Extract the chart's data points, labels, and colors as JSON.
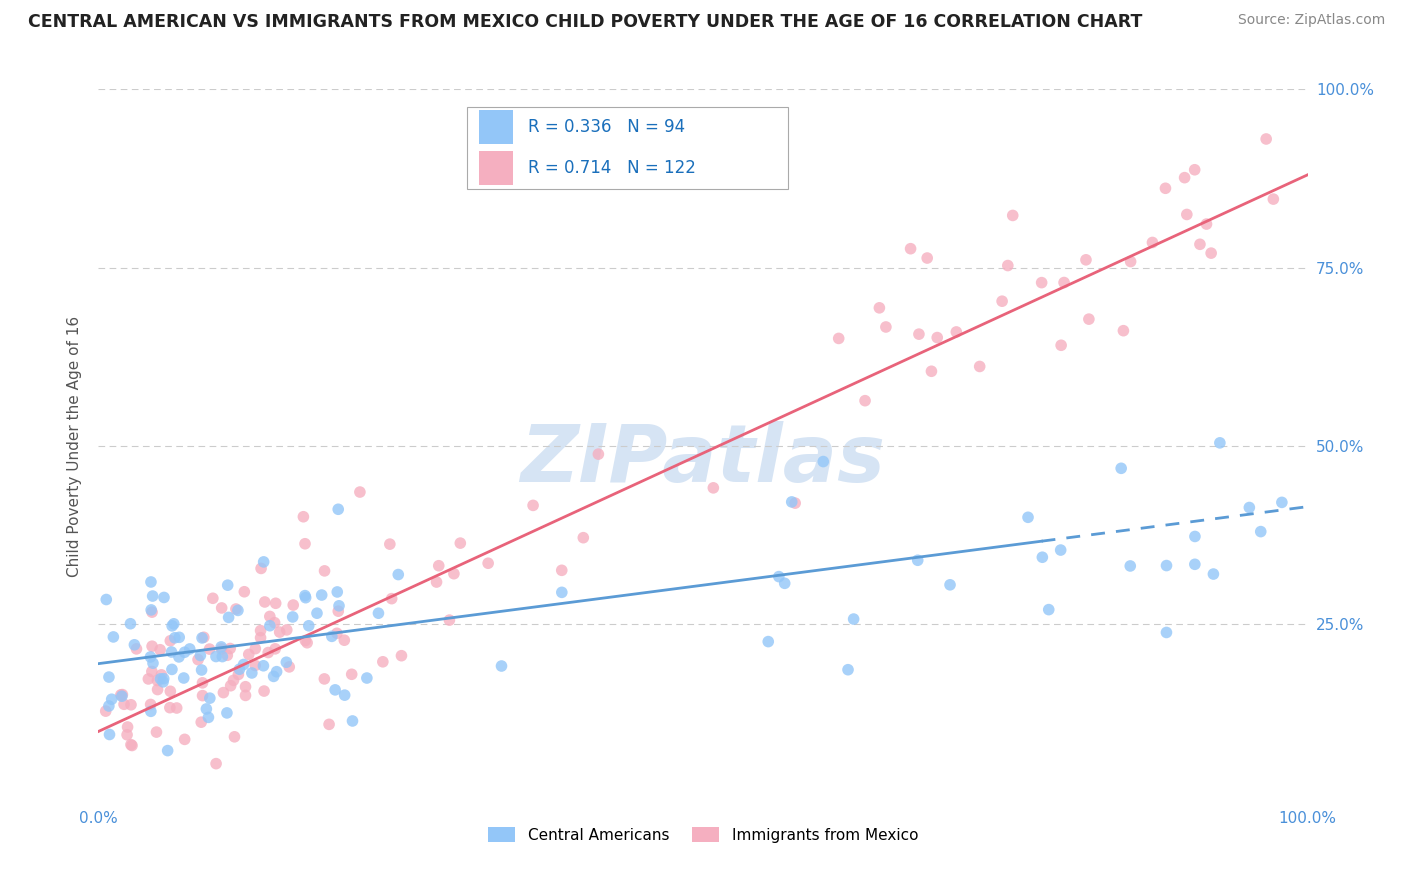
{
  "title": "CENTRAL AMERICAN VS IMMIGRANTS FROM MEXICO CHILD POVERTY UNDER THE AGE OF 16 CORRELATION CHART",
  "source": "Source: ZipAtlas.com",
  "ylabel": "Child Poverty Under the Age of 16",
  "R1": "0.336",
  "N1": "94",
  "R2": "0.714",
  "N2": "122",
  "color1": "#93c6f8",
  "color2": "#f5afc0",
  "line_color1": "#5b9bd5",
  "line_color2": "#e8637a",
  "watermark_color": "#c5d9f0",
  "background_color": "#ffffff",
  "legend_label1": "Central Americans",
  "legend_label2": "Immigrants from Mexico",
  "title_color": "#222222",
  "source_color": "#888888",
  "axis_label_color": "#555555",
  "tick_color": "#4a90d9",
  "grid_color": "#cccccc"
}
